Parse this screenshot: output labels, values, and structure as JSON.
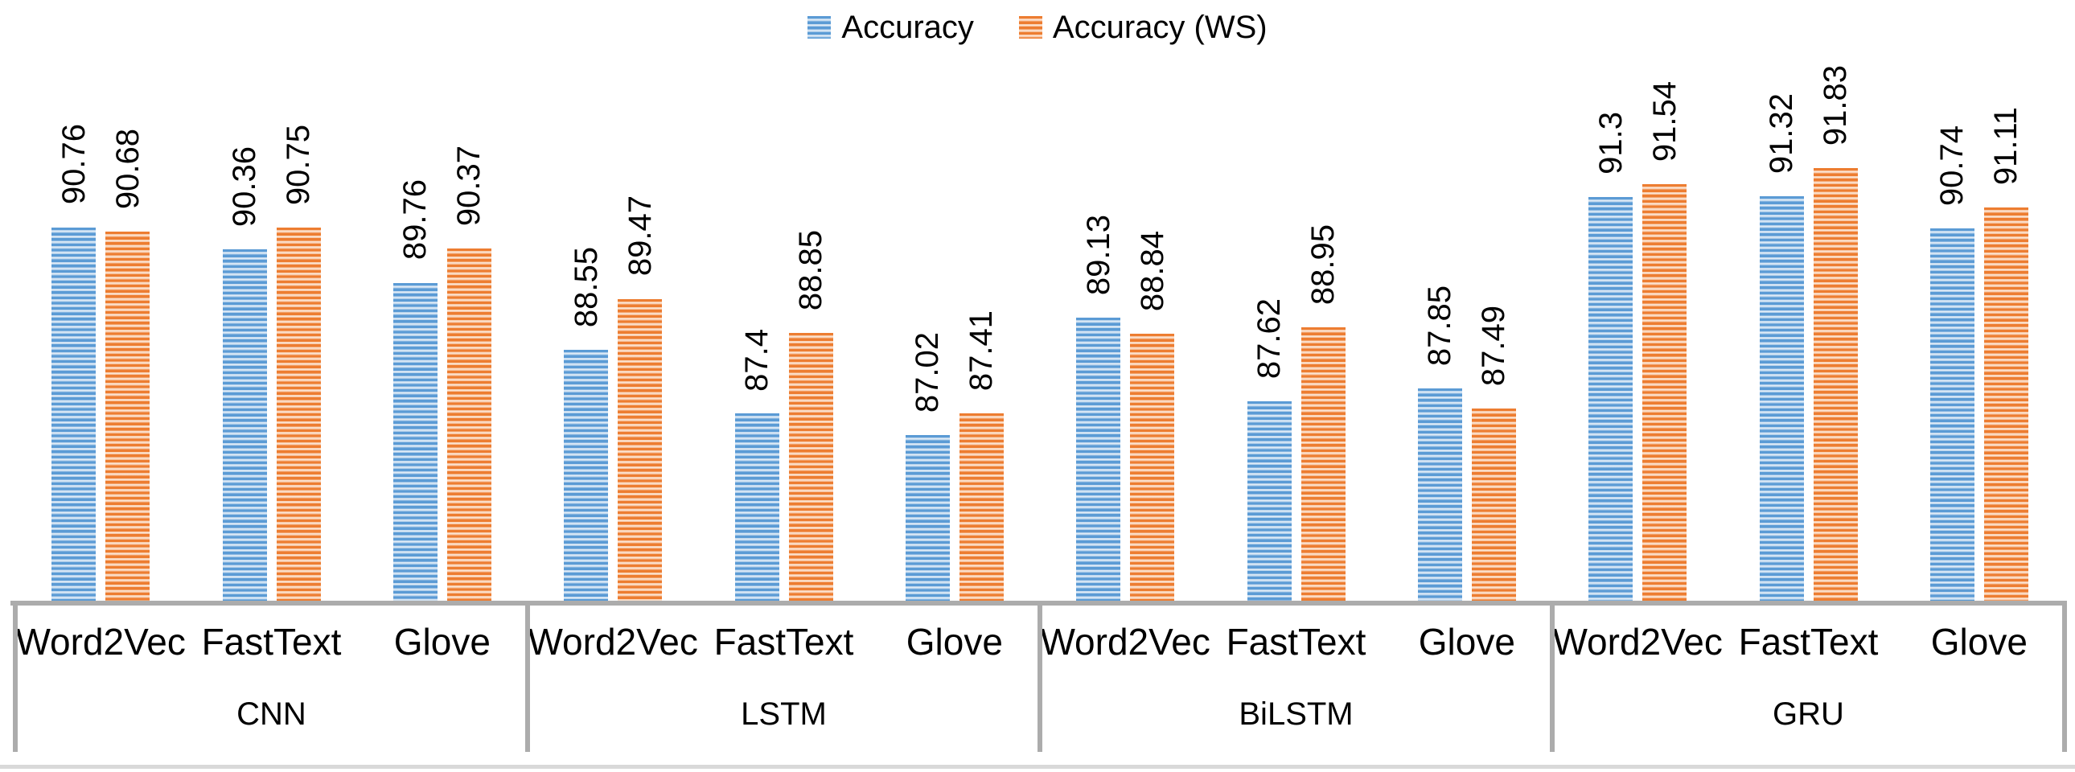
{
  "legend": {
    "position": "top-center",
    "items": [
      {
        "label": "Accuracy",
        "color": "#5B9BD5"
      },
      {
        "label": "Accuracy (WS)",
        "color": "#ED7D31"
      }
    ]
  },
  "colors": {
    "series_accuracy": "#5B9BD5",
    "series_accuracy_ws": "#ED7D31",
    "stripe_light_blue": "#BDD7EE",
    "stripe_light_orange": "#F8CBAD",
    "axis_line": "#ACACAC",
    "page_bottom_rule": "#D9D9D9",
    "text": "#000000"
  },
  "chart_data": {
    "type": "bar",
    "title": "",
    "groups": [
      "CNN",
      "LSTM",
      "BiLSTM",
      "GRU"
    ],
    "categories": [
      "Word2Vec",
      "FastText",
      "Glove"
    ],
    "series": [
      {
        "name": "Accuracy",
        "color": "#5B9BD5",
        "values": [
          [
            90.76,
            90.36,
            89.76
          ],
          [
            88.55,
            87.4,
            87.02
          ],
          [
            89.13,
            87.62,
            87.85
          ],
          [
            91.3,
            91.32,
            90.74
          ]
        ]
      },
      {
        "name": "Accuracy (WS)",
        "color": "#ED7D31",
        "values": [
          [
            90.68,
            90.75,
            90.37
          ],
          [
            89.47,
            88.85,
            87.41
          ],
          [
            88.84,
            88.95,
            87.49
          ],
          [
            91.54,
            91.83,
            91.11
          ]
        ]
      }
    ],
    "ylim": [
      84,
      92
    ],
    "value_axis_visible": false,
    "grid": false,
    "legend_position": "top-center",
    "data_labels": "rotated 90° above bars",
    "fill_style": "horizontal stripe pattern"
  }
}
